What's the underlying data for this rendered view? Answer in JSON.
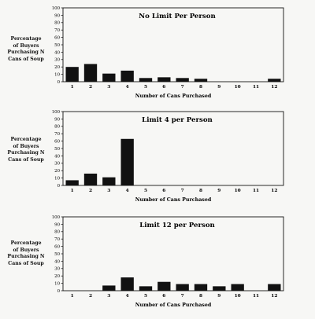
{
  "chart_data": [
    {
      "type": "bar",
      "title": "No Limit Per Person",
      "xlabel": "Number of Cans Purchased",
      "ylabel_lines": [
        "Percentage",
        "of Buyers",
        "Purchasing N",
        "Cans of Soup"
      ],
      "categories": [
        "1",
        "2",
        "3",
        "4",
        "5",
        "6",
        "7",
        "8",
        "9",
        "10",
        "11",
        "12"
      ],
      "values": [
        20,
        24,
        11,
        15,
        5,
        6,
        5,
        4,
        0,
        0,
        0,
        4
      ],
      "ylim": [
        0,
        100
      ],
      "yticks": [
        "0",
        "10",
        "20",
        "30",
        "40",
        "50",
        "60",
        "70",
        "80",
        "90",
        "100"
      ],
      "grid": false
    },
    {
      "type": "bar",
      "title": "Limit 4 per Person",
      "xlabel": "Number of Cans Purchased",
      "ylabel_lines": [
        "Percentage",
        "of Buyers",
        "Purchasing N",
        "Cans of Soup"
      ],
      "categories": [
        "1",
        "2",
        "3",
        "4",
        "5",
        "6",
        "7",
        "8",
        "9",
        "10",
        "11",
        "12"
      ],
      "values": [
        7,
        16,
        11,
        63,
        0,
        0,
        0,
        0,
        0,
        0,
        0,
        0
      ],
      "ylim": [
        0,
        100
      ],
      "yticks": [
        "0",
        "10",
        "20",
        "30",
        "40",
        "50",
        "60",
        "70",
        "80",
        "90",
        "100"
      ],
      "grid": false
    },
    {
      "type": "bar",
      "title": "Limit 12 per Person",
      "xlabel": "Number of Cans Purchased",
      "ylabel_lines": [
        "Percentage",
        "of Buyers",
        "Purchasing N",
        "Cans of Soup"
      ],
      "categories": [
        "1",
        "2",
        "3",
        "4",
        "5",
        "6",
        "7",
        "8",
        "9",
        "10",
        "11",
        "12"
      ],
      "values": [
        0,
        0,
        7,
        18,
        6,
        12,
        9,
        9,
        6,
        9,
        0,
        9
      ],
      "ylim": [
        0,
        100
      ],
      "yticks": [
        "0",
        "10",
        "20",
        "30",
        "40",
        "50",
        "60",
        "70",
        "80",
        "90",
        "100"
      ],
      "grid": false
    }
  ]
}
